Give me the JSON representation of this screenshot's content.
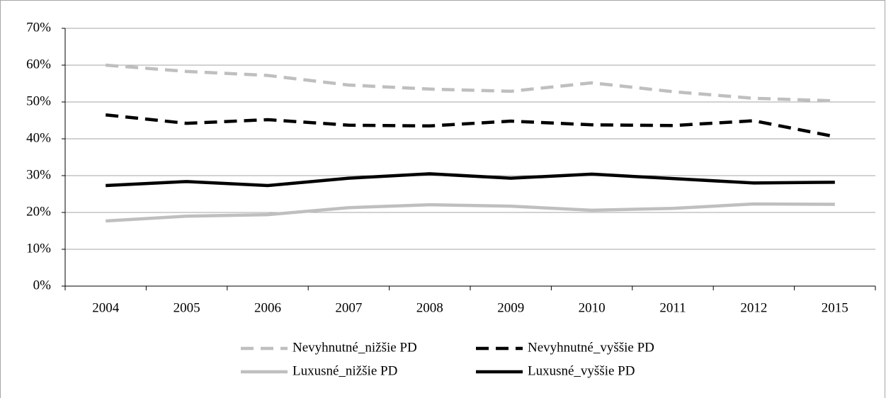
{
  "chart_data": {
    "type": "line",
    "categories": [
      "2004",
      "2005",
      "2006",
      "2007",
      "2008",
      "2009",
      "2010",
      "2011",
      "2012",
      "2015"
    ],
    "series": [
      {
        "name": "Nevyhnutné_nižšie PD",
        "color": "#bfbfbf",
        "style": "dashed",
        "values": [
          60,
          58.3,
          57.2,
          54.6,
          53.5,
          52.9,
          55.2,
          52.8,
          51.0,
          50.3
        ]
      },
      {
        "name": "Nevyhnutné_vyššie PD",
        "color": "#000000",
        "style": "dashed",
        "values": [
          46.5,
          44.2,
          45.2,
          43.7,
          43.5,
          44.8,
          43.8,
          43.6,
          44.9,
          40.6
        ]
      },
      {
        "name": "Luxusné_nižšie PD",
        "color": "#bfbfbf",
        "style": "solid",
        "values": [
          17.7,
          19.0,
          19.4,
          21.3,
          22.1,
          21.7,
          20.6,
          21.1,
          22.3,
          22.2
        ]
      },
      {
        "name": "Luxusné_vyššie PD",
        "color": "#000000",
        "style": "solid",
        "values": [
          27.3,
          28.4,
          27.3,
          29.3,
          30.5,
          29.3,
          30.4,
          29.2,
          28.0,
          28.2
        ]
      }
    ],
    "ylim": [
      0,
      70
    ],
    "yticks": [
      {
        "value": 0,
        "label": "0%"
      },
      {
        "value": 10,
        "label": "10%"
      },
      {
        "value": 20,
        "label": "20%"
      },
      {
        "value": 30,
        "label": "30%"
      },
      {
        "value": 40,
        "label": "40%"
      },
      {
        "value": 50,
        "label": "50%"
      },
      {
        "value": 60,
        "label": "60%"
      },
      {
        "value": 70,
        "label": "70%"
      }
    ],
    "grid": true,
    "legend": "bottom"
  }
}
